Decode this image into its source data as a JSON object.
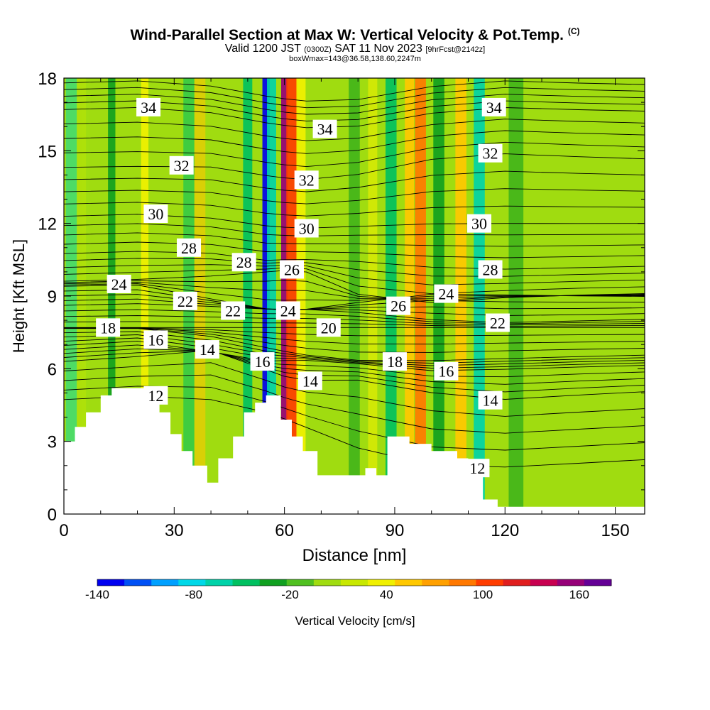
{
  "title": {
    "main": "Wind-Parallel Section at Max W: Vertical Velocity & Pot.Temp.",
    "copyright": "(C)",
    "valid_prefix": "Valid 1200 JST",
    "valid_z": "(0300Z)",
    "valid_date": "SAT 11 Nov 2023",
    "forecast": "[9hrFcst@2142z]",
    "boxinfo": "boxWmax=143@36.58,138.60,2247m"
  },
  "chart_data": {
    "type": "heatmap",
    "xlabel": "Distance [nm]",
    "ylabel": "Height [Kft MSL]",
    "xlim": [
      0,
      158
    ],
    "ylim": [
      0,
      18
    ],
    "x_ticks": [
      "0",
      "30",
      "60",
      "90",
      "120",
      "150"
    ],
    "y_ticks": [
      "0",
      "3",
      "6",
      "9",
      "12",
      "15",
      "18"
    ],
    "colorbar": {
      "label": "Vertical Velocity [cm/s]",
      "tick_labels": [
        "-140",
        "-80",
        "-20",
        "40",
        "100",
        "160"
      ],
      "tick_values": [
        -140,
        -80,
        -20,
        40,
        100,
        160
      ],
      "range": [
        -140,
        180
      ],
      "colors": [
        "#0000f0",
        "#0050f5",
        "#00a0ff",
        "#00d8e8",
        "#00d2a8",
        "#00c060",
        "#10a020",
        "#50c020",
        "#a0dc10",
        "#c8e800",
        "#f0f000",
        "#ffc800",
        "#ffa000",
        "#ff7800",
        "#ff3c00",
        "#e01e1e",
        "#c80050",
        "#960078",
        "#640096"
      ]
    },
    "terrain_kft": [
      {
        "x": 0,
        "h": 3.0
      },
      {
        "x": 3,
        "h": 3.6
      },
      {
        "x": 6,
        "h": 4.2
      },
      {
        "x": 10,
        "h": 4.9
      },
      {
        "x": 13,
        "h": 5.2
      },
      {
        "x": 22,
        "h": 5.2
      },
      {
        "x": 26,
        "h": 4.2
      },
      {
        "x": 29,
        "h": 3.3
      },
      {
        "x": 32,
        "h": 2.6
      },
      {
        "x": 35,
        "h": 2.0
      },
      {
        "x": 39,
        "h": 1.3
      },
      {
        "x": 42,
        "h": 2.3
      },
      {
        "x": 46,
        "h": 3.2
      },
      {
        "x": 49,
        "h": 4.2
      },
      {
        "x": 52,
        "h": 4.6
      },
      {
        "x": 55,
        "h": 4.9
      },
      {
        "x": 59,
        "h": 3.9
      },
      {
        "x": 62,
        "h": 3.2
      },
      {
        "x": 65,
        "h": 2.6
      },
      {
        "x": 69,
        "h": 1.6
      },
      {
        "x": 75,
        "h": 1.6
      },
      {
        "x": 82,
        "h": 1.9
      },
      {
        "x": 85,
        "h": 1.6
      },
      {
        "x": 88,
        "h": 3.2
      },
      {
        "x": 94,
        "h": 2.9
      },
      {
        "x": 100,
        "h": 2.6
      },
      {
        "x": 107,
        "h": 2.3
      },
      {
        "x": 110,
        "h": 1.6
      },
      {
        "x": 114,
        "h": 0.6
      },
      {
        "x": 118,
        "h": 0.3
      },
      {
        "x": 158,
        "h": 0.3
      }
    ],
    "vertical_velocity_bands": [
      {
        "x": 2,
        "w": 3.0,
        "value": -70
      },
      {
        "x": 6,
        "w": 2.0,
        "value": 10
      },
      {
        "x": 13,
        "w": 2.0,
        "value": -30
      },
      {
        "x": 22,
        "w": 2.0,
        "value": 40
      },
      {
        "x": 34,
        "w": 3.0,
        "value": -40
      },
      {
        "x": 37,
        "w": 3.0,
        "value": 60
      },
      {
        "x": 50,
        "w": 2.5,
        "value": -40
      },
      {
        "x": 55,
        "w": 2.0,
        "value": -140
      },
      {
        "x": 56.5,
        "w": 2.5,
        "value": -60
      },
      {
        "x": 60,
        "w": 1.8,
        "value": 160
      },
      {
        "x": 62,
        "w": 3.0,
        "value": 100
      },
      {
        "x": 64.5,
        "w": 2.5,
        "value": 40
      },
      {
        "x": 79,
        "w": 3.0,
        "value": -30
      },
      {
        "x": 84,
        "w": 2.5,
        "value": 40
      },
      {
        "x": 89,
        "w": 3.0,
        "value": -40
      },
      {
        "x": 94,
        "w": 2.5,
        "value": 60
      },
      {
        "x": 97,
        "w": 3.0,
        "value": 80
      },
      {
        "x": 102,
        "w": 3.0,
        "value": -30
      },
      {
        "x": 108,
        "w": 3.0,
        "value": 60
      },
      {
        "x": 113,
        "w": 3.0,
        "value": -60
      },
      {
        "x": 123,
        "w": 4.0,
        "value": -30
      }
    ],
    "theta_contours": [
      {
        "level": 12,
        "x": 25,
        "y": 4.9
      },
      {
        "level": 12,
        "x": 112.5,
        "y": 1.9
      },
      {
        "level": 14,
        "x": 39,
        "y": 6.8
      },
      {
        "level": 14,
        "x": 67,
        "y": 5.5
      },
      {
        "level": 14,
        "x": 116,
        "y": 4.7
      },
      {
        "level": 16,
        "x": 25,
        "y": 7.2
      },
      {
        "level": 16,
        "x": 54,
        "y": 6.3
      },
      {
        "level": 16,
        "x": 104,
        "y": 5.9
      },
      {
        "level": 18,
        "x": 12,
        "y": 7.7
      },
      {
        "level": 18,
        "x": 90,
        "y": 6.3
      },
      {
        "level": 20,
        "x": 72,
        "y": 7.7
      },
      {
        "level": 22,
        "x": 33,
        "y": 8.8
      },
      {
        "level": 22,
        "x": 46,
        "y": 8.4
      },
      {
        "level": 22,
        "x": 118,
        "y": 7.9
      },
      {
        "level": 24,
        "x": 15,
        "y": 9.5
      },
      {
        "level": 24,
        "x": 61,
        "y": 8.4
      },
      {
        "level": 24,
        "x": 104,
        "y": 9.1
      },
      {
        "level": 26,
        "x": 62,
        "y": 10.1
      },
      {
        "level": 26,
        "x": 91,
        "y": 8.6
      },
      {
        "level": 28,
        "x": 34,
        "y": 11.0
      },
      {
        "level": 28,
        "x": 49,
        "y": 10.4
      },
      {
        "level": 28,
        "x": 116,
        "y": 10.1
      },
      {
        "level": 30,
        "x": 25,
        "y": 12.4
      },
      {
        "level": 30,
        "x": 66,
        "y": 11.8
      },
      {
        "level": 30,
        "x": 113,
        "y": 12.0
      },
      {
        "level": 32,
        "x": 32,
        "y": 14.4
      },
      {
        "level": 32,
        "x": 66,
        "y": 13.8
      },
      {
        "level": 32,
        "x": 116,
        "y": 14.9
      },
      {
        "level": 34,
        "x": 23,
        "y": 16.8
      },
      {
        "level": 34,
        "x": 71,
        "y": 15.9
      },
      {
        "level": 34,
        "x": 117,
        "y": 16.8
      }
    ]
  }
}
